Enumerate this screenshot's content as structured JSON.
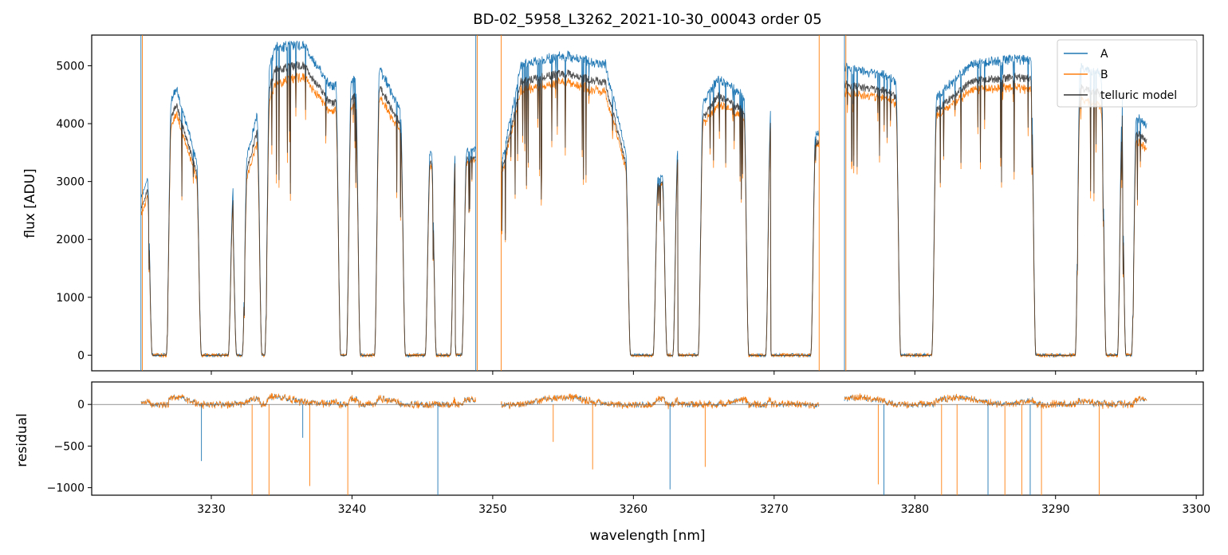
{
  "chart_data": [
    {
      "type": "line",
      "title": "BD-02_5958_L3262_2021-10-30_00043  order 05",
      "xlabel": "",
      "ylabel": "flux [ADU]",
      "xlim": [
        3221.5,
        3300.5
      ],
      "ylim": [
        -270,
        5530
      ],
      "yticks": [
        0,
        1000,
        2000,
        3000,
        4000,
        5000
      ],
      "xticks": [
        3230,
        3240,
        3250,
        3260,
        3270,
        3280,
        3290,
        3300
      ],
      "legend": "top-right",
      "legend_entries": [
        "A",
        "B",
        "telluric model"
      ],
      "colors": {
        "A": "#1f77b4",
        "B": "#ff7f0e",
        "telluric model": "#333333"
      },
      "bands": [
        {
          "range": [
            3225.0,
            3248.8
          ],
          "continuum": {
            "A": [
              [
                3225.0,
                2750
              ],
              [
                3227.5,
                4700
              ],
              [
                3230,
                2500
              ],
              [
                3232,
                3000
              ],
              [
                3234.5,
                5400
              ],
              [
                3236.5,
                5450
              ],
              [
                3238.5,
                4700
              ],
              [
                3242,
                5000
              ],
              [
                3245,
                3550
              ],
              [
                3248.5,
                3600
              ]
            ],
            "B": [
              [
                3225.0,
                2450
              ],
              [
                3227.5,
                4250
              ],
              [
                3230,
                2300
              ],
              [
                3232,
                2700
              ],
              [
                3234.5,
                4750
              ],
              [
                3236.5,
                4900
              ],
              [
                3238.5,
                4250
              ],
              [
                3242,
                4500
              ],
              [
                3245,
                3300
              ],
              [
                3248.5,
                3400
              ]
            ]
          }
        },
        {
          "range": [
            3250.6,
            3273.2
          ],
          "continuum": {
            "A": [
              [
                3250.6,
                3300
              ],
              [
                3252,
                5100
              ],
              [
                3255,
                5250
              ],
              [
                3258,
                5100
              ],
              [
                3260,
                3000
              ],
              [
                3262,
                3150
              ],
              [
                3266,
                4850
              ],
              [
                3270,
                4200
              ],
              [
                3273,
                3900
              ]
            ],
            "B": [
              [
                3250.6,
                3100
              ],
              [
                3252,
                4650
              ],
              [
                3255,
                4800
              ],
              [
                3258,
                4600
              ],
              [
                3260,
                2800
              ],
              [
                3262,
                3000
              ],
              [
                3266,
                4400
              ],
              [
                3270,
                3900
              ],
              [
                3273,
                3700
              ]
            ]
          }
        },
        {
          "range": [
            3275.0,
            3296.5
          ],
          "continuum": {
            "A": [
              [
                3275.0,
                5050
              ],
              [
                3278,
                4900
              ],
              [
                3281,
                4400
              ],
              [
                3284,
                5100
              ],
              [
                3287,
                5200
              ],
              [
                3290,
                5150
              ],
              [
                3293,
                4950
              ],
              [
                3296.5,
                4000
              ]
            ],
            "B": [
              [
                3275.0,
                4600
              ],
              [
                3278,
                4500
              ],
              [
                3281,
                4100
              ],
              [
                3284,
                4650
              ],
              [
                3287,
                4700
              ],
              [
                3290,
                4600
              ],
              [
                3293,
                4400
              ],
              [
                3296.5,
                3600
              ]
            ]
          }
        }
      ],
      "absorption_windows": [
        [
          3225.8,
          3226.8
        ],
        [
          3229.3,
          3231.2
        ],
        [
          3231.8,
          3232.2
        ],
        [
          3233.6,
          3233.8
        ],
        [
          3239.2,
          3239.6
        ],
        [
          3240.6,
          3241.6
        ],
        [
          3243.8,
          3245.2
        ],
        [
          3246.0,
          3247.0
        ],
        [
          3247.4,
          3247.8
        ],
        [
          3259.8,
          3261.4
        ],
        [
          3262.4,
          3262.8
        ],
        [
          3263.2,
          3264.6
        ],
        [
          3268.2,
          3269.4
        ],
        [
          3269.8,
          3272.6
        ],
        [
          3279.0,
          3281.2
        ],
        [
          3288.6,
          3291.4
        ],
        [
          3293.6,
          3294.4
        ],
        [
          3295.0,
          3295.4
        ]
      ]
    },
    {
      "type": "line",
      "xlabel": "wavelength [nm]",
      "ylabel": "residual",
      "xlim": [
        3221.5,
        3300.5
      ],
      "ylim": [
        -1090,
        270
      ],
      "yticks": [
        -1000,
        -500,
        0
      ],
      "xticks": [
        3230,
        3240,
        3250,
        3260,
        3270,
        3280,
        3290,
        3300
      ],
      "reference_line": 0,
      "deep_residual_lines": [
        [
          3229.3,
          -680
        ],
        [
          3232.9,
          -1090
        ],
        [
          3234.1,
          -1090
        ],
        [
          3236.5,
          -400
        ],
        [
          3237.0,
          -980
        ],
        [
          3239.7,
          -1090
        ],
        [
          3246.1,
          -1090
        ],
        [
          3254.3,
          -450
        ],
        [
          3257.1,
          -780
        ],
        [
          3262.6,
          -1020
        ],
        [
          3265.1,
          -750
        ],
        [
          3277.4,
          -960
        ],
        [
          3277.8,
          -1090
        ],
        [
          3281.9,
          -1090
        ],
        [
          3283.0,
          -1090
        ],
        [
          3285.2,
          -1090
        ],
        [
          3286.4,
          -1090
        ],
        [
          3287.6,
          -1090
        ],
        [
          3288.2,
          -1090
        ],
        [
          3289.0,
          -1090
        ],
        [
          3293.1,
          -1090
        ]
      ]
    }
  ]
}
